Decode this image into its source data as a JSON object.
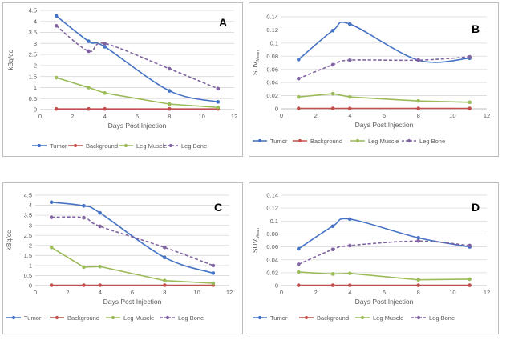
{
  "chart_data": [
    {
      "type": "line",
      "letter": "A",
      "ylabel": "kBq/cc",
      "ylabel_sub": "",
      "xlabel": "Days Post Injection",
      "xlim": [
        0,
        12
      ],
      "xticks": [
        0,
        2,
        4,
        6,
        8,
        10,
        12
      ],
      "ylim": [
        0,
        4.5
      ],
      "yticks": [
        "0",
        "0.5",
        "1",
        "1.5",
        "2",
        "2.5",
        "3",
        "3.5",
        "4",
        "4.5"
      ],
      "x": [
        1,
        3,
        4,
        8,
        11
      ],
      "series": [
        {
          "name": "Tumor",
          "color": "#4472c4",
          "style": "solid",
          "values": [
            4.25,
            3.1,
            2.85,
            0.85,
            0.35
          ]
        },
        {
          "name": "Background",
          "color": "#c0504d",
          "style": "solid",
          "values": [
            0.03,
            0.03,
            0.03,
            0.03,
            0.03
          ]
        },
        {
          "name": "Leg Muscle",
          "color": "#9bbb59",
          "style": "solid",
          "values": [
            1.45,
            1.0,
            0.75,
            0.25,
            0.1
          ]
        },
        {
          "name": "Leg Bone",
          "color": "#8064a2",
          "style": "dashed",
          "values": [
            3.8,
            2.65,
            3.0,
            1.85,
            0.95
          ]
        }
      ]
    },
    {
      "type": "line",
      "letter": "B",
      "ylabel": "SUV",
      "ylabel_sub": "Mean",
      "xlabel": "Days Post Injection",
      "xlim": [
        0,
        12
      ],
      "xticks": [
        0,
        2,
        4,
        6,
        8,
        10,
        12
      ],
      "ylim": [
        0,
        0.14
      ],
      "yticks": [
        "0",
        "0.02",
        "0.04",
        "0.06",
        "0.08",
        "0.1",
        "0.12",
        "0.14"
      ],
      "x": [
        1,
        3,
        4,
        8,
        11
      ],
      "series": [
        {
          "name": "Tumor",
          "color": "#4472c4",
          "style": "solid",
          "values": [
            0.075,
            0.119,
            0.129,
            0.074,
            0.077
          ]
        },
        {
          "name": "Background",
          "color": "#c0504d",
          "style": "solid",
          "values": [
            0.0005,
            0.0005,
            0.0005,
            0.0005,
            0.0005
          ]
        },
        {
          "name": "Leg Muscle",
          "color": "#9bbb59",
          "style": "solid",
          "values": [
            0.018,
            0.023,
            0.018,
            0.012,
            0.01
          ]
        },
        {
          "name": "Leg Bone",
          "color": "#8064a2",
          "style": "dashed",
          "values": [
            0.046,
            0.067,
            0.074,
            0.074,
            0.079
          ]
        }
      ]
    },
    {
      "type": "line",
      "letter": "C",
      "ylabel": "kBq/cc",
      "ylabel_sub": "",
      "xlabel": "Days Post Injection",
      "xlim": [
        0,
        12
      ],
      "xticks": [
        0,
        2,
        4,
        6,
        8,
        10,
        12
      ],
      "ylim": [
        0,
        4.5
      ],
      "yticks": [
        "0",
        "0.5",
        "1",
        "1.5",
        "2",
        "2.5",
        "3",
        "3.5",
        "4",
        "4.5"
      ],
      "x": [
        1,
        3,
        4,
        8,
        11
      ],
      "series": [
        {
          "name": "Tumor",
          "color": "#4472c4",
          "style": "solid",
          "values": [
            4.15,
            3.97,
            3.62,
            1.4,
            0.62
          ]
        },
        {
          "name": "Background",
          "color": "#c0504d",
          "style": "solid",
          "values": [
            0.02,
            0.02,
            0.02,
            0.02,
            0.02
          ]
        },
        {
          "name": "Leg Muscle",
          "color": "#9bbb59",
          "style": "solid",
          "values": [
            1.9,
            0.92,
            0.95,
            0.25,
            0.12
          ]
        },
        {
          "name": "Leg Bone",
          "color": "#8064a2",
          "style": "dashed",
          "values": [
            3.4,
            3.38,
            2.95,
            1.9,
            1.0
          ]
        }
      ]
    },
    {
      "type": "line",
      "letter": "D",
      "ylabel": "SUV",
      "ylabel_sub": "Mean",
      "xlabel": "Days Post Injection",
      "xlim": [
        0,
        12
      ],
      "xticks": [
        0,
        2,
        4,
        6,
        8,
        10,
        12
      ],
      "ylim": [
        0,
        0.14
      ],
      "yticks": [
        "0",
        "0.02",
        "0.04",
        "0.06",
        "0.08",
        "0.1",
        "0.12",
        "0.14"
      ],
      "x": [
        1,
        3,
        4,
        8,
        11
      ],
      "series": [
        {
          "name": "Tumor",
          "color": "#4472c4",
          "style": "solid",
          "values": [
            0.057,
            0.092,
            0.103,
            0.074,
            0.06
          ]
        },
        {
          "name": "Background",
          "color": "#c0504d",
          "style": "solid",
          "values": [
            0.0005,
            0.0005,
            0.0005,
            0.0005,
            0.0005
          ]
        },
        {
          "name": "Leg Muscle",
          "color": "#9bbb59",
          "style": "solid",
          "values": [
            0.021,
            0.018,
            0.019,
            0.009,
            0.01
          ]
        },
        {
          "name": "Leg Bone",
          "color": "#8064a2",
          "style": "dashed",
          "values": [
            0.033,
            0.056,
            0.062,
            0.069,
            0.062
          ]
        }
      ]
    }
  ]
}
